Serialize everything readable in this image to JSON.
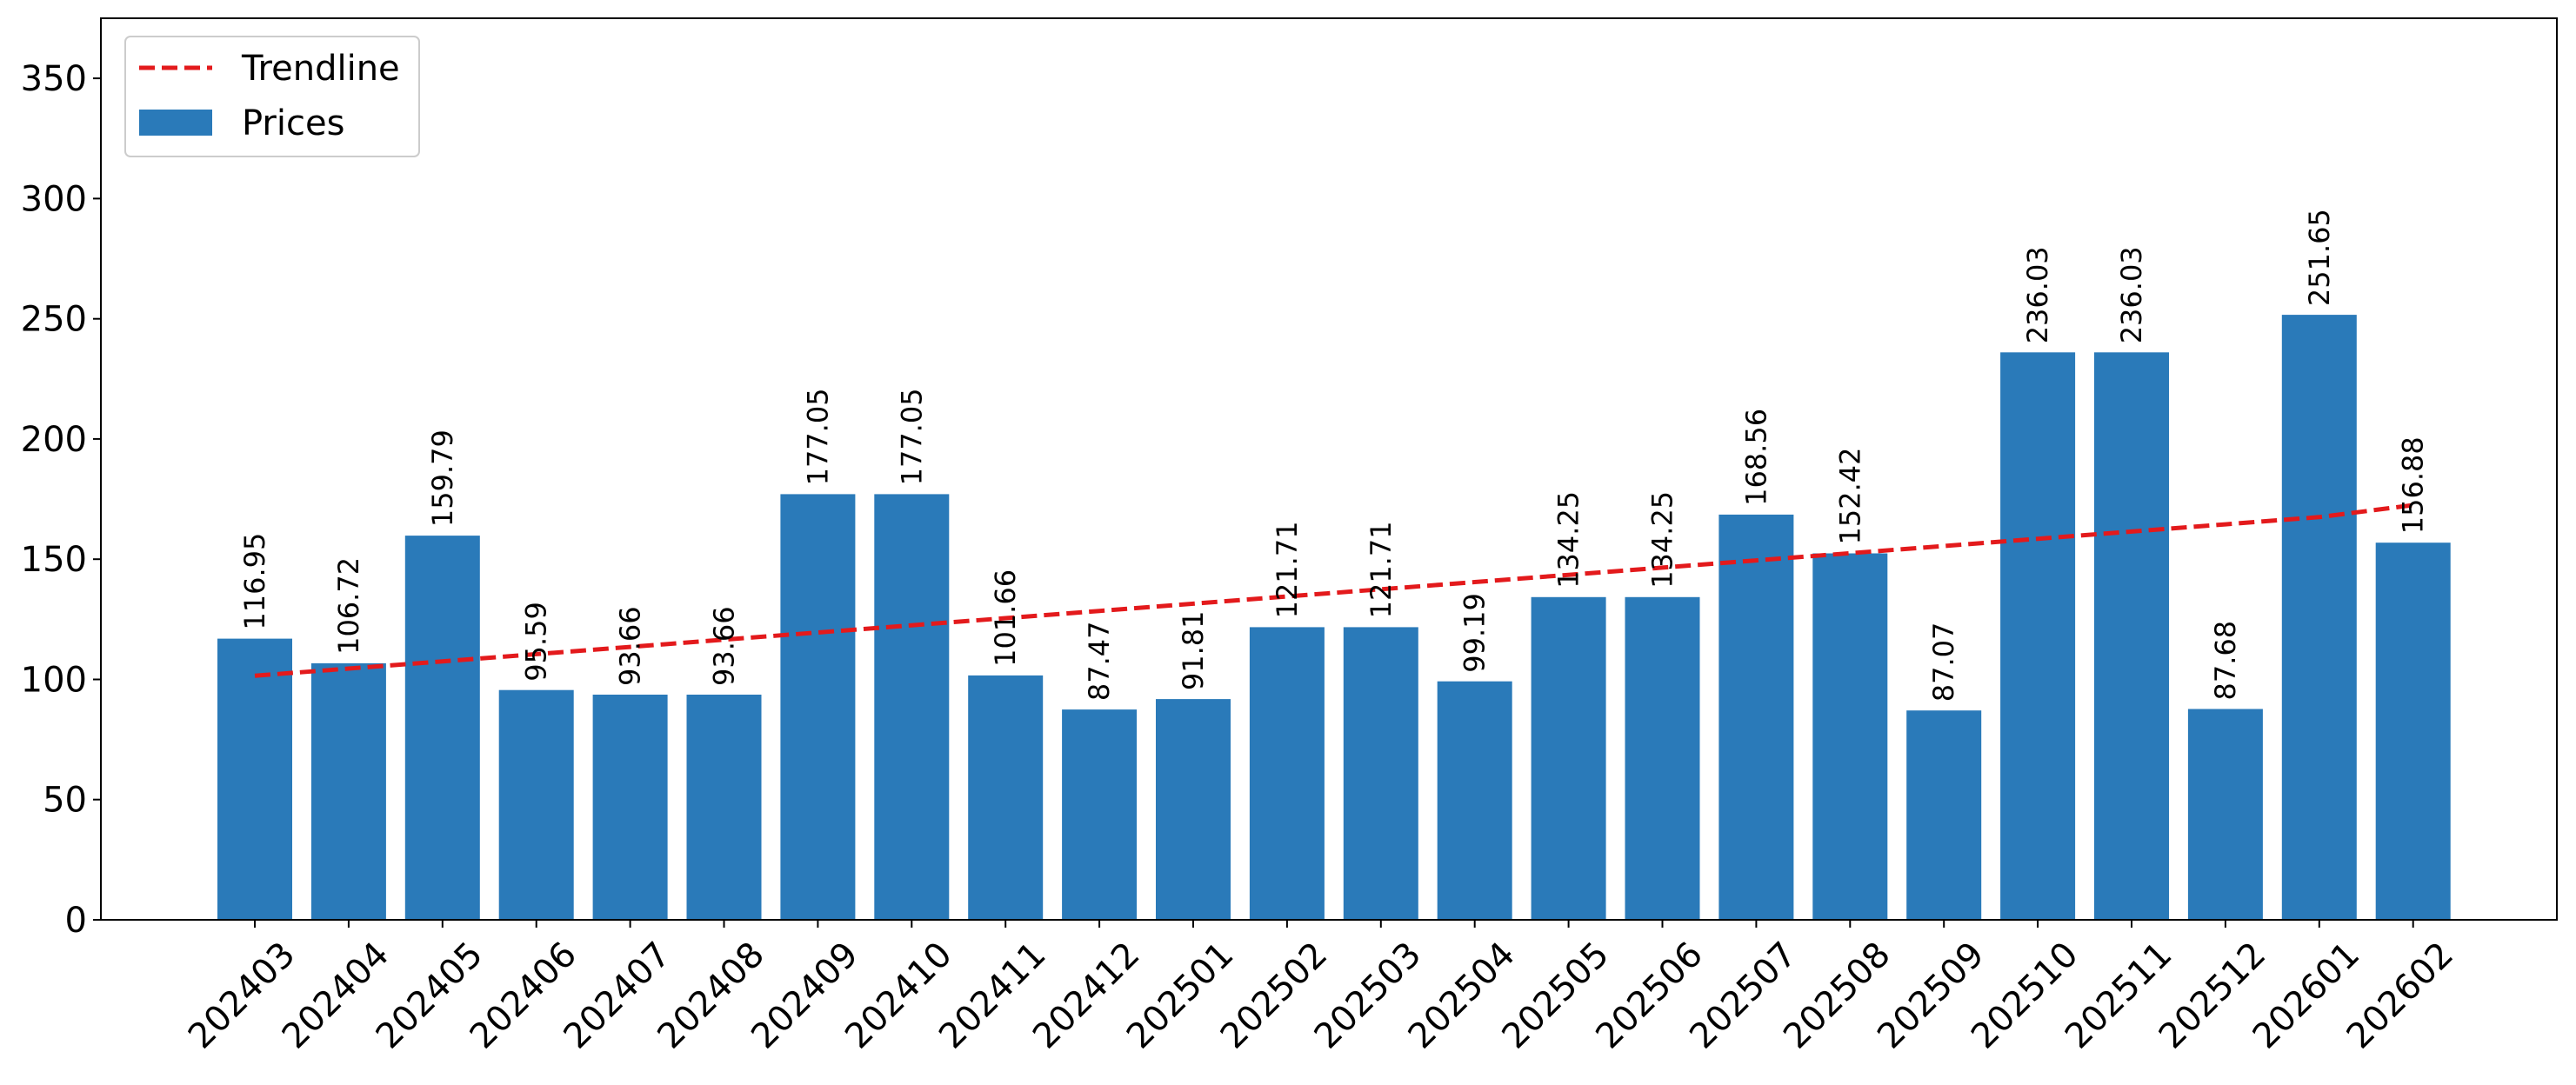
{
  "chart_data": {
    "type": "bar",
    "title": "",
    "xlabel": "",
    "ylabel": "",
    "categories": [
      "202403",
      "202404",
      "202405",
      "202406",
      "202407",
      "202408",
      "202409",
      "202410",
      "202411",
      "202412",
      "202501",
      "202502",
      "202503",
      "202504",
      "202505",
      "202506",
      "202507",
      "202508",
      "202509",
      "202510",
      "202511",
      "202512",
      "202601",
      "202602"
    ],
    "series": [
      {
        "name": "Prices",
        "kind": "bar",
        "color": "#2a7ab9",
        "values": [
          116.95,
          106.72,
          159.79,
          95.59,
          93.66,
          93.66,
          177.05,
          177.05,
          101.66,
          87.47,
          91.81,
          121.71,
          121.71,
          99.19,
          134.25,
          134.25,
          168.56,
          152.42,
          87.07,
          236.03,
          236.03,
          87.68,
          251.65,
          156.88
        ],
        "data_labels": [
          "116.95",
          "106.72",
          "159.79",
          "95.59",
          "93.66",
          "93.66",
          "177.05",
          "177.05",
          "101.66",
          "87.47",
          "91.81",
          "121.71",
          "121.71",
          "99.19",
          "134.25",
          "134.25",
          "168.56",
          "152.42",
          "87.07",
          "236.03",
          "236.03",
          "87.68",
          "251.65",
          "156.88"
        ]
      },
      {
        "name": "Trendline",
        "kind": "line",
        "style": "dashed",
        "color": "#e31a1c",
        "values": [
          101.5,
          104.5,
          107.5,
          110.5,
          113.5,
          116.5,
          119.5,
          122.5,
          125.5,
          128.5,
          131.5,
          134.5,
          137.5,
          140.5,
          143.5,
          146.5,
          149.5,
          152.5,
          155.5,
          158.5,
          161.5,
          164.5,
          167.5,
          172.5
        ]
      }
    ],
    "ylim": [
      0,
      375
    ],
    "yticks": [
      "0",
      "50",
      "100",
      "150",
      "200",
      "250",
      "300",
      "350"
    ],
    "ytick_values": [
      0,
      50,
      100,
      150,
      200,
      250,
      300,
      350
    ],
    "xtick_rotation": 45,
    "bar_label_rotation": 90,
    "legend": {
      "placement": "top-left",
      "entries": [
        {
          "label": "Trendline",
          "kind": "line",
          "style": "dashed",
          "color": "#e31a1c"
        },
        {
          "label": "Prices",
          "kind": "bar",
          "color": "#2a7ab9"
        }
      ]
    },
    "grid": false
  }
}
